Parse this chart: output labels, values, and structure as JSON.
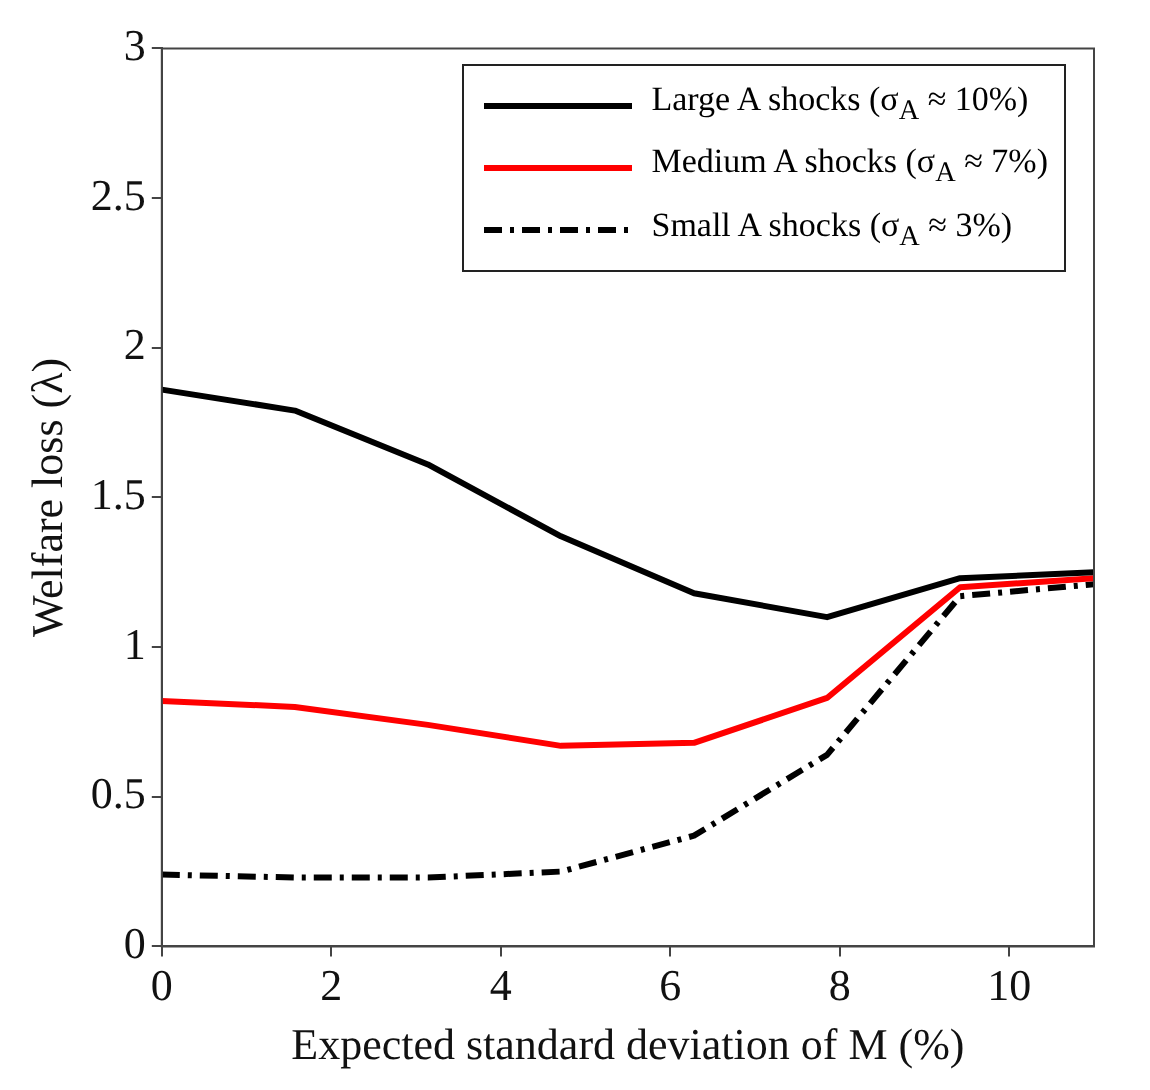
{
  "chart_data": {
    "type": "line",
    "xlabel": "Expected standard deviation of M (%)",
    "ylabel": "Welfare loss (λ)",
    "x": [
      0,
      1.57,
      3.14,
      4.71,
      6.28,
      7.85,
      9.42,
      11
    ],
    "xlim": [
      0,
      11
    ],
    "xticks": [
      0,
      2,
      4,
      6,
      8,
      10
    ],
    "ylim": [
      0,
      3
    ],
    "yticks": [
      0,
      0.5,
      1,
      1.5,
      2,
      2.5,
      3
    ],
    "grid": false,
    "legend": "top right",
    "marker": "none",
    "series": [
      {
        "name": "Large A shocks (σ$_{A}$ ≈ 10%)",
        "color": "#000000",
        "line_style": "solid",
        "values": [
          1.86,
          1.79,
          1.61,
          1.37,
          1.18,
          1.1,
          1.23,
          1.25
        ]
      },
      {
        "name": "Medium A shocks (σ$_{A}$ ≈ 7%)",
        "color": "#ff0000",
        "line_style": "solid",
        "values": [
          0.82,
          0.8,
          0.74,
          0.67,
          0.68,
          0.83,
          1.2,
          1.23
        ]
      },
      {
        "name": "Small A shocks (σ$_{A}$ ≈ 3%)",
        "color": "#000000",
        "line_style": "dashed",
        "values": [
          0.24,
          0.23,
          0.23,
          0.25,
          0.37,
          0.64,
          1.17,
          1.21
        ]
      }
    ]
  }
}
